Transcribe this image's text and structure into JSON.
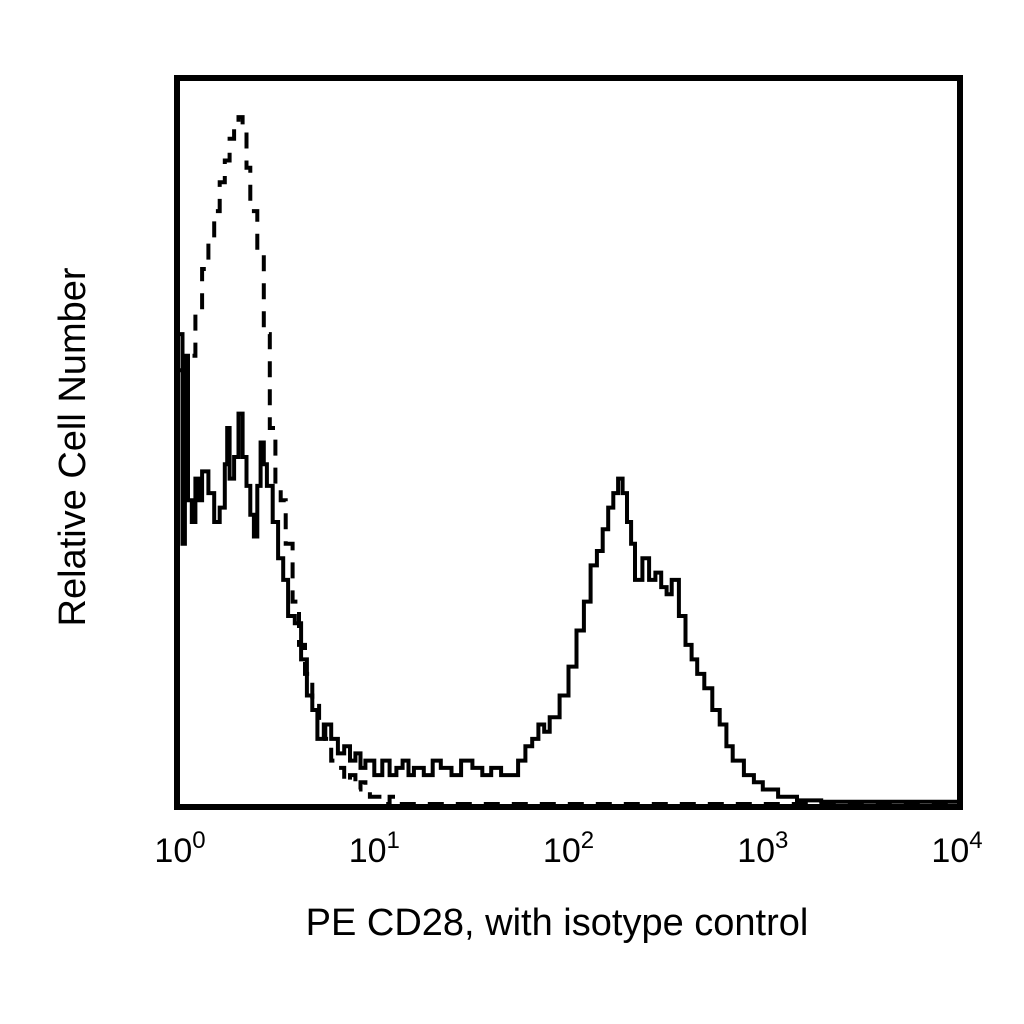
{
  "chart_data": {
    "type": "line",
    "title": "",
    "xlabel": "PE CD28, with isotype control",
    "ylabel": "Relative Cell Number",
    "xscale": "log",
    "xlim": [
      1,
      10000
    ],
    "ylim": [
      0,
      1
    ],
    "grid": false,
    "legend": "none",
    "x_ticks": [
      {
        "base": "10",
        "exp": "0",
        "value": 1
      },
      {
        "base": "10",
        "exp": "1",
        "value": 10
      },
      {
        "base": "10",
        "exp": "2",
        "value": 100
      },
      {
        "base": "10",
        "exp": "3",
        "value": 1000
      },
      {
        "base": "10",
        "exp": "4",
        "value": 10000
      }
    ],
    "series": [
      {
        "style": "dashed",
        "color": "#000000",
        "x": [
          1.0,
          1.05,
          1.1,
          1.2,
          1.3,
          1.4,
          1.5,
          1.6,
          1.7,
          1.8,
          1.9,
          2.0,
          2.1,
          2.2,
          2.3,
          2.5,
          2.7,
          2.9,
          3.1,
          3.3,
          3.5,
          3.8,
          4.1,
          4.4,
          4.8,
          5.2,
          5.6,
          6.0,
          6.5,
          7.0,
          7.5,
          8.0,
          8.5,
          9.0,
          9.5,
          10.0,
          10.5,
          11.0,
          12.0,
          13.0,
          15.0,
          20.0,
          30.0,
          50.0,
          80.0,
          100.0,
          150.0,
          200.0,
          300.0,
          500.0,
          1000.0,
          2000.0,
          5000.0,
          10000.0
        ],
        "y": [
          0.6,
          0.58,
          0.62,
          0.68,
          0.74,
          0.78,
          0.82,
          0.86,
          0.89,
          0.92,
          0.94,
          0.95,
          0.93,
          0.88,
          0.82,
          0.76,
          0.65,
          0.52,
          0.44,
          0.42,
          0.36,
          0.28,
          0.22,
          0.18,
          0.14,
          0.11,
          0.09,
          0.06,
          0.05,
          0.03,
          0.04,
          0.02,
          0.03,
          0.02,
          0.01,
          0.01,
          0.01,
          0.0,
          0.01,
          0.0,
          0.0,
          0.0,
          0.0,
          0.0,
          0.0,
          0.0,
          0.0,
          0.0,
          0.0,
          0.0,
          0.0,
          0.0,
          0.0,
          0.0
        ]
      },
      {
        "style": "solid",
        "color": "#000000",
        "x": [
          1.0,
          1.03,
          1.06,
          1.1,
          1.15,
          1.2,
          1.25,
          1.3,
          1.4,
          1.5,
          1.6,
          1.7,
          1.75,
          1.8,
          1.9,
          2.0,
          2.1,
          2.2,
          2.3,
          2.4,
          2.5,
          2.6,
          2.7,
          2.8,
          3.0,
          3.2,
          3.4,
          3.6,
          3.9,
          4.2,
          4.5,
          4.8,
          5.1,
          5.5,
          6.0,
          6.5,
          7.0,
          7.5,
          8.0,
          8.5,
          9.0,
          10.0,
          11.0,
          12.0,
          13.0,
          14.0,
          15.0,
          16.0,
          18.0,
          20.0,
          22.0,
          25.0,
          28.0,
          32.0,
          36.0,
          40.0,
          45.0,
          50.0,
          55.0,
          60.0,
          65.0,
          70.0,
          75.0,
          80.0,
          90.0,
          100.0,
          110.0,
          120.0,
          130.0,
          140.0,
          150.0,
          160.0,
          170.0,
          180.0,
          190.0,
          200.0,
          210.0,
          220.0,
          240.0,
          260.0,
          280.0,
          300.0,
          320.0,
          340.0,
          370.0,
          400.0,
          430.0,
          460.0,
          500.0,
          550.0,
          600.0,
          650.0,
          700.0,
          800.0,
          900.0,
          1000.0,
          1200.0,
          1500.0,
          2000.0,
          3000.0,
          5000.0,
          10000.0
        ],
        "y": [
          0.65,
          0.36,
          0.62,
          0.42,
          0.39,
          0.45,
          0.42,
          0.46,
          0.43,
          0.39,
          0.41,
          0.47,
          0.52,
          0.45,
          0.48,
          0.54,
          0.48,
          0.44,
          0.4,
          0.37,
          0.44,
          0.5,
          0.47,
          0.44,
          0.39,
          0.34,
          0.31,
          0.26,
          0.25,
          0.2,
          0.15,
          0.13,
          0.09,
          0.11,
          0.09,
          0.07,
          0.08,
          0.06,
          0.07,
          0.05,
          0.06,
          0.04,
          0.06,
          0.04,
          0.05,
          0.06,
          0.04,
          0.05,
          0.04,
          0.06,
          0.05,
          0.04,
          0.06,
          0.05,
          0.04,
          0.05,
          0.04,
          0.04,
          0.06,
          0.08,
          0.09,
          0.11,
          0.1,
          0.12,
          0.15,
          0.19,
          0.24,
          0.28,
          0.33,
          0.35,
          0.38,
          0.41,
          0.43,
          0.45,
          0.43,
          0.39,
          0.36,
          0.31,
          0.34,
          0.31,
          0.32,
          0.3,
          0.29,
          0.31,
          0.26,
          0.22,
          0.2,
          0.18,
          0.16,
          0.13,
          0.11,
          0.08,
          0.06,
          0.04,
          0.03,
          0.02,
          0.01,
          0.005,
          0.003,
          0.003,
          0.003,
          0.003
        ]
      }
    ]
  }
}
